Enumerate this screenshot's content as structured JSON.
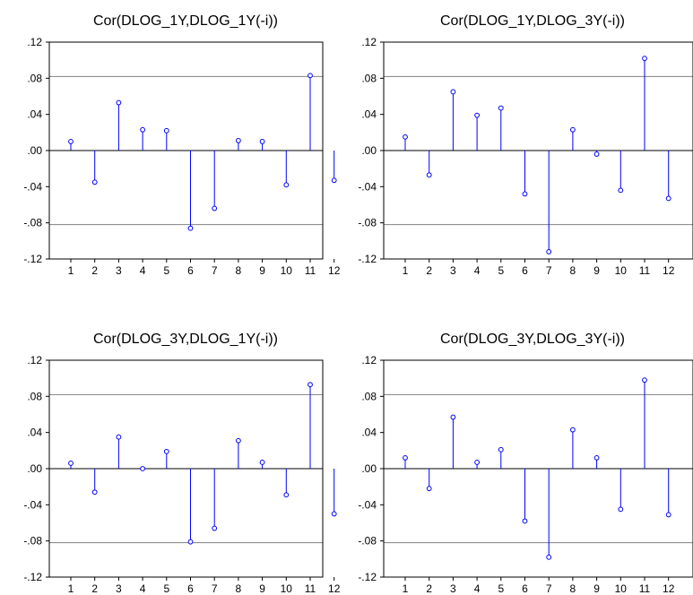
{
  "chart_data": [
    {
      "type": "stem",
      "title": "Cor(DLOG_1Y,DLOG_1Y(-i))",
      "categories": [
        "1",
        "2",
        "3",
        "4",
        "5",
        "6",
        "7",
        "8",
        "9",
        "10",
        "11",
        "12"
      ],
      "values": [
        0.01,
        -0.035,
        0.053,
        0.023,
        0.022,
        -0.086,
        -0.064,
        0.011,
        0.01,
        -0.038,
        0.083,
        -0.033
      ],
      "ylim": [
        -0.12,
        0.12
      ],
      "yticks": [
        ".12",
        ".08",
        ".04",
        ".00",
        "-.04",
        "-.08",
        "-.12"
      ],
      "reference_bands": [
        0.082,
        -0.082
      ]
    },
    {
      "type": "stem",
      "title": "Cor(DLOG_1Y,DLOG_3Y(-i))",
      "categories": [
        "1",
        "2",
        "3",
        "4",
        "5",
        "6",
        "7",
        "8",
        "9",
        "10",
        "11",
        "12"
      ],
      "values": [
        0.015,
        -0.027,
        0.065,
        0.039,
        0.047,
        -0.048,
        -0.112,
        0.023,
        -0.004,
        -0.044,
        0.102,
        -0.053
      ],
      "ylim": [
        -0.12,
        0.12
      ],
      "yticks": [
        ".12",
        ".08",
        ".04",
        ".00",
        "-.04",
        "-.08",
        "-.12"
      ],
      "reference_bands": [
        0.082,
        -0.082
      ]
    },
    {
      "type": "stem",
      "title": "Cor(DLOG_3Y,DLOG_1Y(-i))",
      "categories": [
        "1",
        "2",
        "3",
        "4",
        "5",
        "6",
        "7",
        "8",
        "9",
        "10",
        "11",
        "12"
      ],
      "values": [
        0.006,
        -0.026,
        0.035,
        0.0,
        0.019,
        -0.081,
        -0.066,
        0.031,
        0.007,
        -0.029,
        0.093,
        -0.05
      ],
      "ylim": [
        -0.12,
        0.12
      ],
      "yticks": [
        ".12",
        ".08",
        ".04",
        ".00",
        "-.04",
        "-.08",
        "-.12"
      ],
      "reference_bands": [
        0.082,
        -0.082
      ]
    },
    {
      "type": "stem",
      "title": "Cor(DLOG_3Y,DLOG_3Y(-i))",
      "categories": [
        "1",
        "2",
        "3",
        "4",
        "5",
        "6",
        "7",
        "8",
        "9",
        "10",
        "11",
        "12"
      ],
      "values": [
        0.012,
        -0.022,
        0.057,
        0.007,
        0.021,
        -0.058,
        -0.098,
        0.043,
        0.012,
        -0.045,
        0.098,
        -0.051
      ],
      "ylim": [
        -0.12,
        0.12
      ],
      "yticks": [
        ".12",
        ".08",
        ".04",
        ".00",
        "-.04",
        "-.08",
        "-.12"
      ],
      "reference_bands": [
        0.082,
        -0.082
      ]
    }
  ],
  "colors": {
    "spike": "#0000ff",
    "band": "#808080",
    "frame": "#000000",
    "background": "#ffffff"
  }
}
